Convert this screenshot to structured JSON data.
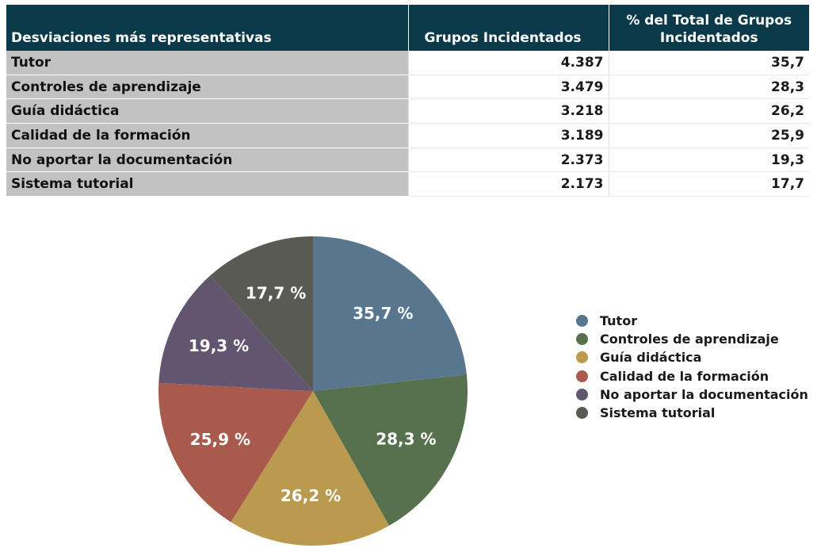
{
  "table": {
    "headers": [
      "Desviaciones más representativas",
      "Grupos Incidentados",
      "% del Total de Grupos Incidentados"
    ],
    "rows": [
      {
        "label": "Tutor",
        "groups": "4.387",
        "pct": "35,7"
      },
      {
        "label": "Controles de aprendizaje",
        "groups": "3.479",
        "pct": "28,3"
      },
      {
        "label": "Guía didáctica",
        "groups": "3.218",
        "pct": "26,2"
      },
      {
        "label": "Calidad de la formación",
        "groups": "3.189",
        "pct": "25,9"
      },
      {
        "label": "No aportar la documentación",
        "groups": "2.373",
        "pct": "19,3"
      },
      {
        "label": "Sistema tutorial",
        "groups": "2.173",
        "pct": "17,7"
      }
    ]
  },
  "chart_data": {
    "type": "pie",
    "categories": [
      "Tutor",
      "Controles de aprendizaje",
      "Guía didáctica",
      "Calidad de la formación",
      "No aportar la documentación",
      "Sistema tutorial"
    ],
    "values": [
      35.7,
      28.3,
      26.2,
      25.9,
      19.3,
      17.7
    ],
    "slice_labels": [
      "35,7 %",
      "28,3 %",
      "26,2 %",
      "25,9 %",
      "19,3 %",
      "17,7 %"
    ],
    "colors": [
      "#58778f",
      "#57714f",
      "#b99a4f",
      "#a85a4d",
      "#625570",
      "#5a5a55"
    ],
    "legend_position": "right"
  }
}
